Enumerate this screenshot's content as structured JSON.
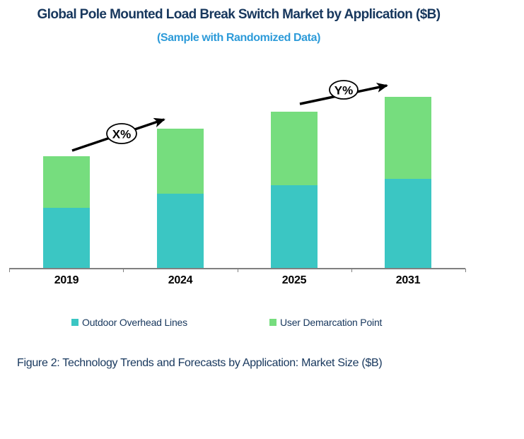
{
  "title": "Global Pole Mounted Load Break Switch Market by Application ($B)",
  "subtitle": "(Sample with Randomized Data)",
  "caption": "Figure 2: Technology Trends and Forecasts by Application: Market Size ($B)",
  "colors": {
    "title_text": "#17375D",
    "subtitle_text": "#2D9BD9",
    "caption_text": "#17375D",
    "legend_text": "#17375D",
    "axis_line": "#808080",
    "outdoor_overhead_lines": "#3BC6C3",
    "user_demarcation_point": "#76DD7E",
    "annotation_stroke": "#000000",
    "annotation_fill": "#FFFFFF",
    "annotation_text": "#000000"
  },
  "chart_data": {
    "type": "bar",
    "stacked": true,
    "title": "Global Pole Mounted Load Break Switch Market by Application ($B)",
    "subtitle": "(Sample with Randomized Data)",
    "categories": [
      "2019",
      "2024",
      "2025",
      "2031"
    ],
    "series": [
      {
        "name": "Outdoor Overhead Lines",
        "color_key": "outdoor_overhead_lines",
        "values": [
          0.86,
          1.06,
          1.18,
          1.27
        ]
      },
      {
        "name": "User Demarcation Point",
        "color_key": "user_demarcation_point",
        "values": [
          0.73,
          0.92,
          1.04,
          1.16
        ]
      }
    ],
    "totals": [
      1.59,
      1.98,
      2.22,
      2.43
    ],
    "xlabel": "",
    "ylabel": "",
    "ylim": [
      0,
      2.6
    ],
    "value_axis_visible": false,
    "value_axis_note": "No value axis or data labels shown; values estimated from relative bar heights in arbitrary units",
    "gridlines": false,
    "legend_position": "bottom",
    "annotations": [
      {
        "label": "X%",
        "from_category": "2019",
        "to_category": "2024",
        "meaning": "growth rate arrow between 2019 and 2024 bars"
      },
      {
        "label": "Y%",
        "from_category": "2025",
        "to_category": "2031",
        "meaning": "growth rate arrow between 2025 and 2031 bars"
      }
    ]
  },
  "legend": {
    "items": [
      {
        "label": "Outdoor Overhead Lines",
        "color_key": "outdoor_overhead_lines"
      },
      {
        "label": "User Demarcation Point",
        "color_key": "user_demarcation_point"
      }
    ]
  }
}
